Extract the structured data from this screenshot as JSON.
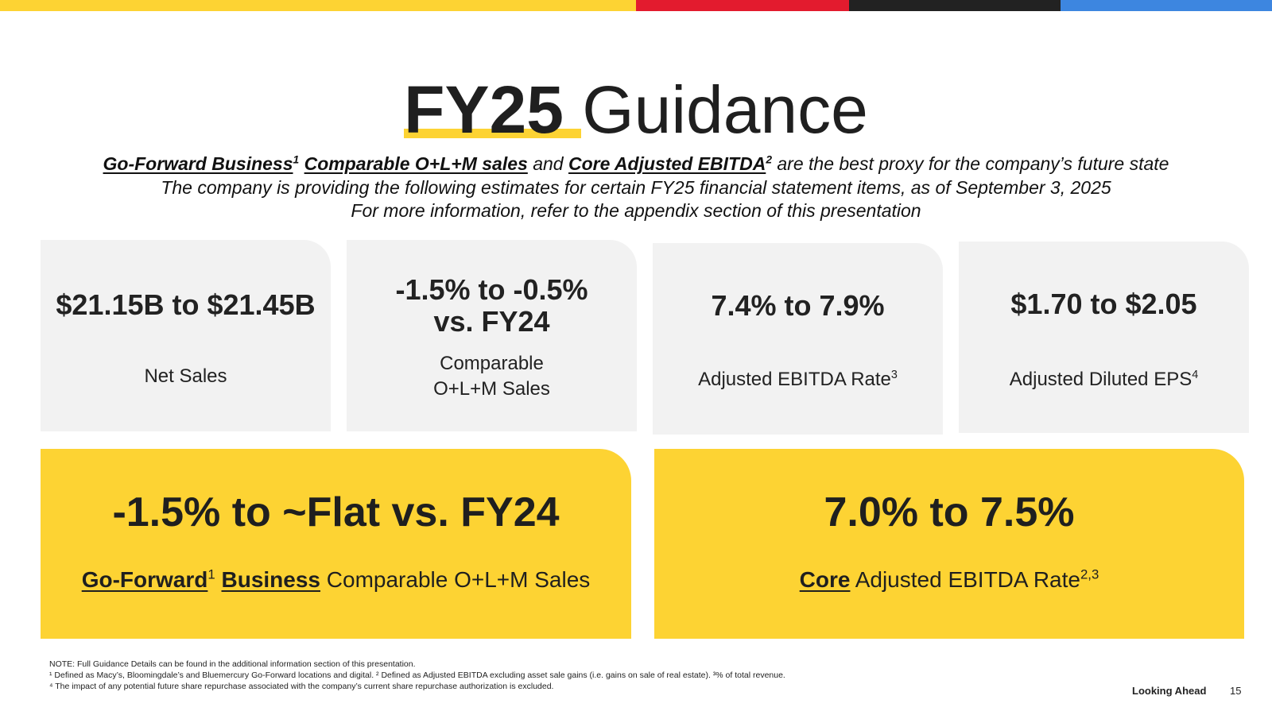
{
  "colors": {
    "yellow": "#FDD333",
    "red": "#E31B2E",
    "black": "#222222",
    "blue": "#3D86E0",
    "card_gray": "#f2f2f2"
  },
  "title": {
    "highlight": "FY25",
    "rest": "Guidance"
  },
  "subtitle": {
    "line1": {
      "part1": "Go-Forward Business",
      "sup1": "1",
      "part2": "Comparable O+L+M sales",
      "and": "and",
      "part3": "Core Adjusted EBITDA",
      "sup2": "2",
      "rest": "are the best proxy for the company’s future state"
    },
    "line2": "The company is providing the following estimates for certain FY25 financial statement items, as of September 3, 2025",
    "line3": "For more information, refer to the appendix section of this presentation"
  },
  "cards": [
    {
      "value": "$21.15B to $21.45B",
      "label": "Net Sales"
    },
    {
      "value_line1": "-1.5% to -0.5%",
      "value_line2": "vs. FY24",
      "label_line1": "Comparable",
      "label_line2": "O+L+M Sales"
    },
    {
      "value": "7.4% to 7.9%",
      "label": "Adjusted EBITDA Rate",
      "sup": "3"
    },
    {
      "value": "$1.70 to $2.05",
      "label": "Adjusted Diluted EPS",
      "sup": "4"
    }
  ],
  "yellow_cards": [
    {
      "value": "-1.5% to ~Flat vs. FY24",
      "label_bold1": "Go-Forward",
      "sup": "1",
      "label_bold2": "Business",
      "label_rest": "Comparable O+L+M Sales"
    },
    {
      "value": "7.0% to 7.5%",
      "label_bold": "Core",
      "label_rest": "Adjusted EBITDA Rate",
      "sup": "2,3"
    }
  ],
  "notes": {
    "line1": "NOTE: Full Guidance Details can be found in the additional information section of this presentation.",
    "line2": "¹ Defined as Macy’s, Bloomingdale’s and Bluemercury Go-Forward locations and digital. ² Defined as Adjusted EBITDA excluding asset sale gains (i.e. gains on sale of real estate).   ³% of total revenue.",
    "line3": "⁴ The impact of any potential future share repurchase associated with the company’s current share repurchase authorization is excluded."
  },
  "footer": {
    "section": "Looking Ahead",
    "page": "15"
  }
}
